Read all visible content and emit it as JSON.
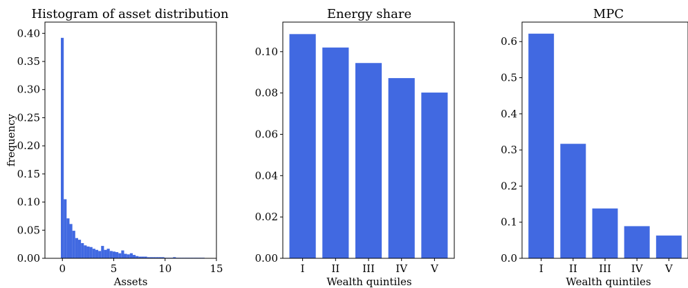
{
  "bar_color": "#4169E1",
  "chart_data": [
    {
      "type": "bar",
      "title": "Histogram of asset distribution",
      "xlabel": "Assets",
      "ylabel": "frequency",
      "xlim": [
        -1.7,
        15
      ],
      "ylim": [
        0,
        0.42
      ],
      "xticks": [
        0,
        5,
        10,
        15
      ],
      "yticks": [
        0.0,
        0.05,
        0.1,
        0.15,
        0.2,
        0.25,
        0.3,
        0.35,
        0.4
      ],
      "ytick_labels": [
        "0.00",
        "0.05",
        "0.10",
        "0.15",
        "0.20",
        "0.25",
        "0.30",
        "0.35",
        "0.40"
      ],
      "bin_start": -0.15,
      "bin_width": 0.28,
      "values": [
        0.392,
        0.105,
        0.071,
        0.061,
        0.049,
        0.036,
        0.033,
        0.027,
        0.023,
        0.021,
        0.02,
        0.017,
        0.015,
        0.013,
        0.022,
        0.015,
        0.017,
        0.013,
        0.012,
        0.011,
        0.009,
        0.014,
        0.008,
        0.007,
        0.009,
        0.006,
        0.004,
        0.003,
        0.003,
        0.003,
        0.002,
        0.002,
        0.002,
        0.002,
        0.002,
        0.002,
        0.001,
        0.001,
        0.001,
        0.002,
        0.001,
        0.001,
        0.001,
        0.001,
        0.001,
        0.001,
        0.001,
        0.001,
        0.001,
        0.001
      ]
    },
    {
      "type": "bar",
      "title": "Energy share",
      "xlabel": "Wealth quintiles",
      "ylabel": "",
      "categories": [
        "I",
        "II",
        "III",
        "IV",
        "V"
      ],
      "values": [
        0.1085,
        0.102,
        0.0945,
        0.0872,
        0.0802
      ],
      "ylim": [
        0,
        0.1143
      ],
      "yticks": [
        0.0,
        0.02,
        0.04,
        0.06,
        0.08,
        0.1
      ],
      "ytick_labels": [
        "0.00",
        "0.02",
        "0.04",
        "0.06",
        "0.08",
        "0.10"
      ]
    },
    {
      "type": "bar",
      "title": "MPC",
      "xlabel": "Wealth quintiles",
      "ylabel": "",
      "categories": [
        "I",
        "II",
        "III",
        "IV",
        "V"
      ],
      "values": [
        0.622,
        0.317,
        0.138,
        0.089,
        0.063
      ],
      "ylim": [
        0,
        0.654
      ],
      "yticks": [
        0.0,
        0.1,
        0.2,
        0.3,
        0.4,
        0.5,
        0.6
      ],
      "ytick_labels": [
        "0.0",
        "0.1",
        "0.2",
        "0.3",
        "0.4",
        "0.5",
        "0.6"
      ]
    }
  ]
}
